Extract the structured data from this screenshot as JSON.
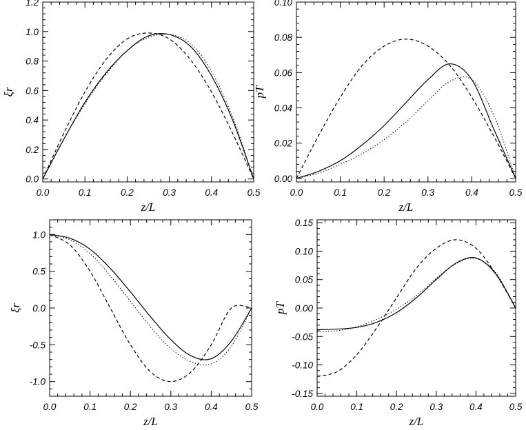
{
  "chart_data": [
    {
      "type": "line",
      "xlabel": "z/L",
      "ylabel": "ξr",
      "xlim": [
        0,
        0.5
      ],
      "ylim": [
        -0.02,
        1.2
      ],
      "xticks": [
        "0.0",
        "0.1",
        "0.2",
        "0.3",
        "0.4",
        "0.5"
      ],
      "yticks": [
        "0.0",
        "0.2",
        "0.4",
        "0.6",
        "0.8",
        "1.0",
        "1.2"
      ],
      "x": [
        0,
        0.05,
        0.1,
        0.15,
        0.2,
        0.25,
        0.3,
        0.35,
        0.4,
        0.45,
        0.5
      ],
      "series": [
        {
          "style": "solid",
          "values": [
            0,
            0.27,
            0.52,
            0.72,
            0.87,
            0.97,
            0.98,
            0.9,
            0.7,
            0.4,
            0
          ]
        },
        {
          "style": "dotted",
          "values": [
            0,
            0.27,
            0.51,
            0.71,
            0.87,
            0.96,
            0.98,
            0.92,
            0.73,
            0.42,
            0
          ]
        },
        {
          "style": "dashed",
          "values": [
            0,
            0.31,
            0.59,
            0.81,
            0.95,
            0.99,
            0.95,
            0.81,
            0.59,
            0.31,
            0
          ]
        }
      ]
    },
    {
      "type": "line",
      "xlabel": "z/L",
      "ylabel": "pT",
      "xlim": [
        0,
        0.5
      ],
      "ylim": [
        -0.002,
        0.1
      ],
      "xticks": [
        "0.0",
        "0.1",
        "0.2",
        "0.3",
        "0.4",
        "0.5"
      ],
      "yticks": [
        "0.00",
        "0.02",
        "0.04",
        "0.06",
        "0.08",
        "0.10"
      ],
      "x": [
        0,
        0.05,
        0.1,
        0.15,
        0.2,
        0.25,
        0.3,
        0.35,
        0.4,
        0.45,
        0.5
      ],
      "series": [
        {
          "style": "solid",
          "values": [
            0,
            0.004,
            0.01,
            0.019,
            0.03,
            0.043,
            0.056,
            0.065,
            0.056,
            0.028,
            0
          ]
        },
        {
          "style": "dotted",
          "values": [
            0,
            0.003,
            0.008,
            0.014,
            0.022,
            0.032,
            0.044,
            0.055,
            0.056,
            0.036,
            0
          ]
        },
        {
          "style": "dashed",
          "values": [
            0,
            0.024,
            0.046,
            0.064,
            0.075,
            0.079,
            0.075,
            0.064,
            0.046,
            0.024,
            0
          ]
        }
      ]
    },
    {
      "type": "line",
      "xlabel": "z/L",
      "ylabel": "ξr",
      "xlim": [
        0,
        0.5
      ],
      "ylim": [
        -1.2,
        1.2
      ],
      "xticks": [
        "0.0",
        "0.1",
        "0.2",
        "0.3",
        "0.4",
        "0.5"
      ],
      "yticks": [
        "-1.0",
        "-0.5",
        "0.0",
        "0.5",
        "1.0"
      ],
      "x": [
        0,
        0.05,
        0.1,
        0.15,
        0.2,
        0.25,
        0.3,
        0.35,
        0.4,
        0.45,
        0.5
      ],
      "series": [
        {
          "style": "solid",
          "values": [
            1,
            0.95,
            0.8,
            0.54,
            0.22,
            -0.12,
            -0.43,
            -0.65,
            -0.69,
            -0.45,
            0
          ]
        },
        {
          "style": "dotted",
          "values": [
            1,
            0.93,
            0.74,
            0.44,
            0.09,
            -0.26,
            -0.55,
            -0.73,
            -0.76,
            -0.52,
            0
          ]
        },
        {
          "style": "dashed",
          "values": [
            1,
            0.86,
            0.5,
            0,
            -0.5,
            -0.87,
            -1,
            -0.87,
            -0.5,
            0,
            0
          ]
        }
      ]
    },
    {
      "type": "line",
      "xlabel": "z/L",
      "ylabel": "pT",
      "xlim": [
        0,
        0.5
      ],
      "ylim": [
        -0.155,
        0.155
      ],
      "xticks": [
        "0.0",
        "0.1",
        "0.2",
        "0.3",
        "0.4",
        "0.5"
      ],
      "yticks": [
        "-0.15",
        "-0.10",
        "-0.05",
        "0.00",
        "0.05",
        "0.10",
        "0.15"
      ],
      "x": [
        0,
        0.05,
        0.1,
        0.15,
        0.2,
        0.25,
        0.3,
        0.35,
        0.4,
        0.45,
        0.5
      ],
      "series": [
        {
          "style": "solid",
          "values": [
            -0.038,
            -0.037,
            -0.034,
            -0.025,
            -0.008,
            0.018,
            0.05,
            0.079,
            0.088,
            0.06,
            0
          ]
        },
        {
          "style": "dotted",
          "values": [
            -0.042,
            -0.04,
            -0.033,
            -0.02,
            -0.002,
            0.022,
            0.052,
            0.078,
            0.087,
            0.062,
            0
          ]
        },
        {
          "style": "dashed",
          "values": [
            -0.12,
            -0.112,
            -0.082,
            -0.035,
            0.018,
            0.07,
            0.105,
            0.12,
            0.105,
            0.06,
            0
          ]
        }
      ]
    }
  ]
}
